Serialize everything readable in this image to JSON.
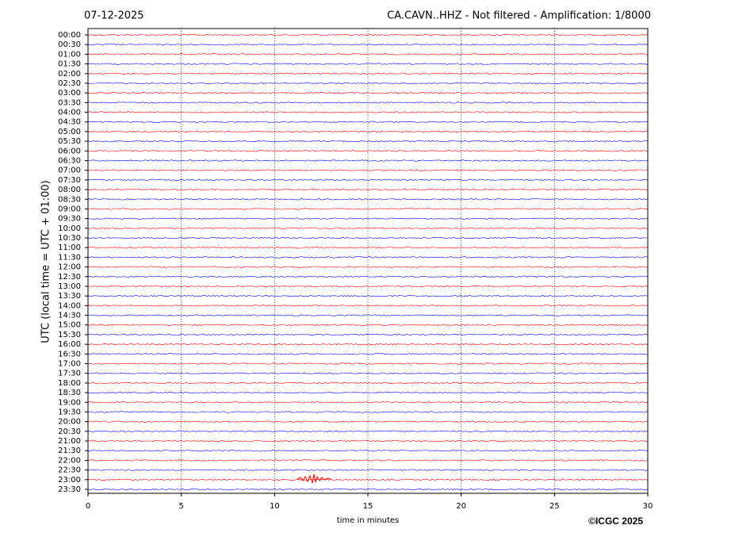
{
  "chart_data": {
    "type": "helicorder",
    "title_left": "07-12-2025",
    "title": "CA.CAVN..HHZ - Not filtered - Amplification: 1/8000",
    "ylabel": "UTC (local time = UTC + 01:00)",
    "xlabel": "time in minutes",
    "credit": "©ICGC 2025",
    "categories": [
      "00:00",
      "00:30",
      "01:00",
      "01:30",
      "02:00",
      "02:30",
      "03:00",
      "03:30",
      "04:00",
      "04:30",
      "05:00",
      "05:30",
      "06:00",
      "06:30",
      "07:00",
      "07:30",
      "08:00",
      "08:30",
      "09:00",
      "09:30",
      "10:00",
      "10:30",
      "11:00",
      "11:30",
      "12:00",
      "12:30",
      "13:00",
      "13:30",
      "14:00",
      "14:30",
      "15:00",
      "15:30",
      "16:00",
      "16:30",
      "17:00",
      "17:30",
      "18:00",
      "18:30",
      "19:00",
      "19:30",
      "20:00",
      "20:30",
      "21:00",
      "21:30",
      "22:00",
      "22:30",
      "23:00",
      "23:30"
    ],
    "colors": [
      "#ff0000",
      "#0000ff"
    ],
    "xlim": [
      0,
      30
    ],
    "xticks": [
      0,
      5,
      10,
      15,
      20,
      25,
      30
    ],
    "grid": true
  }
}
